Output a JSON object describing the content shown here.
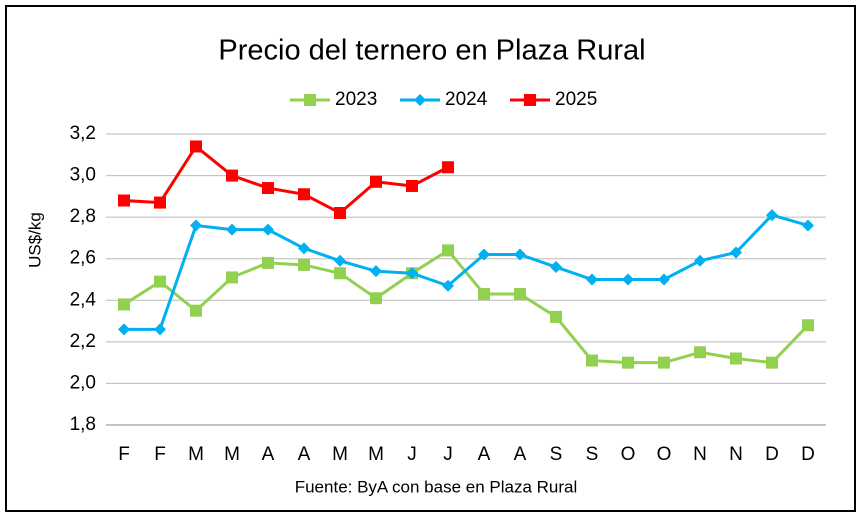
{
  "chart_data": {
    "type": "line",
    "title": "Precio del ternero en Plaza Rural",
    "y_label": "US$/kg",
    "source": "Fuente: ByA con base en Plaza Rural",
    "categories": [
      "F",
      "F",
      "M",
      "M",
      "A",
      "A",
      "M",
      "M",
      "J",
      "J",
      "A",
      "A",
      "S",
      "S",
      "O",
      "O",
      "N",
      "N",
      "D",
      "D"
    ],
    "series": [
      {
        "name": "2023",
        "color": "#92d050",
        "marker": "square",
        "values": [
          2.38,
          2.49,
          2.35,
          2.51,
          2.58,
          2.57,
          2.53,
          2.41,
          2.53,
          2.64,
          2.43,
          2.43,
          2.32,
          2.11,
          2.1,
          2.1,
          2.15,
          2.12,
          2.1,
          2.28
        ]
      },
      {
        "name": "2024",
        "color": "#00b0f0",
        "marker": "diamond",
        "values": [
          2.26,
          2.26,
          2.76,
          2.74,
          2.74,
          2.65,
          2.59,
          2.54,
          2.53,
          2.47,
          2.62,
          2.62,
          2.56,
          2.5,
          2.5,
          2.5,
          2.59,
          2.63,
          2.81,
          2.76
        ]
      },
      {
        "name": "2025",
        "color": "#ff0000",
        "marker": "square",
        "values": [
          2.88,
          2.87,
          3.14,
          3.0,
          2.94,
          2.91,
          2.82,
          2.97,
          2.95,
          3.04,
          null,
          null,
          null,
          null,
          null,
          null,
          null,
          null,
          null,
          null
        ]
      }
    ],
    "ylim": [
      1.8,
      3.2
    ],
    "yticks": [
      {
        "value": 1.8,
        "label": "1,8"
      },
      {
        "value": 2.0,
        "label": "2,0"
      },
      {
        "value": 2.2,
        "label": "2,2"
      },
      {
        "value": 2.4,
        "label": "2,4"
      },
      {
        "value": 2.6,
        "label": "2,6"
      },
      {
        "value": 2.8,
        "label": "2,8"
      },
      {
        "value": 3.0,
        "label": "3,0"
      },
      {
        "value": 3.2,
        "label": "3,2"
      }
    ],
    "grid": true,
    "legend": "top"
  }
}
